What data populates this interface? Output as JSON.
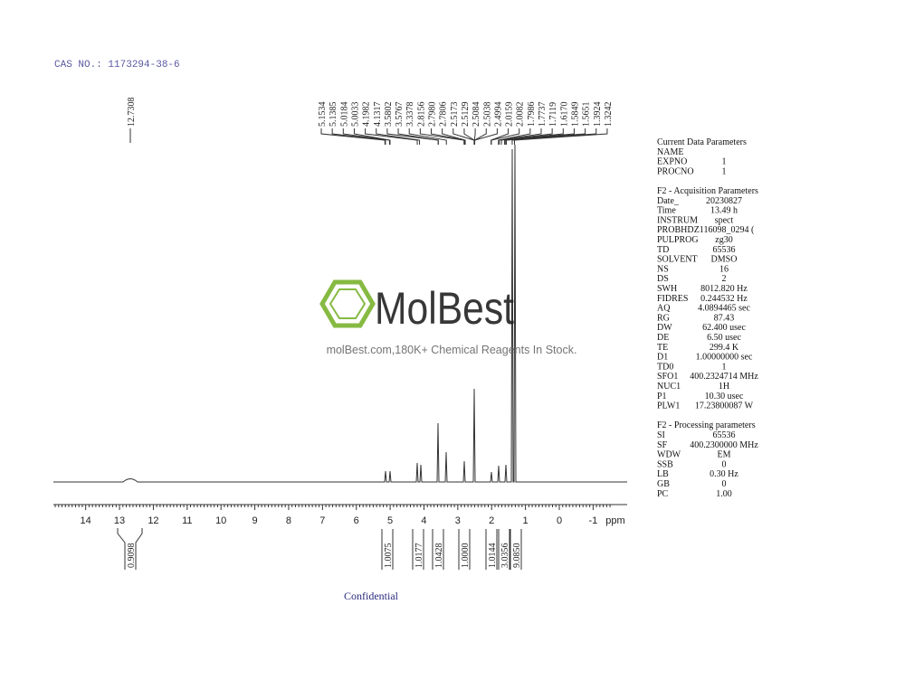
{
  "header": {
    "cas": "CAS NO.: 1173294-38-6"
  },
  "peaks": {
    "single": "12.7308",
    "labels": [
      "5.1534",
      "5.1385",
      "5.0184",
      "5.0033",
      "4.1982",
      "4.1317",
      "3.5802",
      "3.5767",
      "3.3378",
      "2.8156",
      "2.7980",
      "2.7806",
      "2.5173",
      "2.5129",
      "2.5084",
      "2.5038",
      "2.4994",
      "2.0159",
      "2.0082",
      "1.7986",
      "1.7737",
      "1.7119",
      "1.6170",
      "1.5849",
      "1.5651",
      "1.3924",
      "1.3242"
    ]
  },
  "axis": {
    "ticks": [
      "14",
      "13",
      "12",
      "11",
      "10",
      "9",
      "8",
      "7",
      "6",
      "5",
      "4",
      "3",
      "2",
      "1",
      "0",
      "-1"
    ],
    "unit": "ppm"
  },
  "integrals": [
    "0.9098",
    "1.0075",
    "1.0177",
    "1.0428",
    "1.0000",
    "1.0144",
    "3.0356",
    "9.0850"
  ],
  "watermark": {
    "brand": "MolBest",
    "tagline": "molBest.com,180K+ Chemical Reagents In Stock."
  },
  "footer": "Confidential",
  "parameters": [
    {
      "title": "Current Data Parameters",
      "rows": [
        [
          "NAME",
          ""
        ],
        [
          "EXPNO",
          "1"
        ],
        [
          "PROCNO",
          "1"
        ]
      ]
    },
    {
      "title": "F2 - Acquisition Parameters",
      "rows": [
        [
          "Date_",
          "20230827"
        ],
        [
          "Time",
          "13.49 h"
        ],
        [
          "INSTRUM",
          "spect"
        ],
        [
          "PROBHD",
          "Z116098_0294 ("
        ],
        [
          "PULPROG",
          "zg30"
        ],
        [
          "TD",
          "65536"
        ],
        [
          "SOLVENT",
          "DMSO"
        ],
        [
          "NS",
          "16"
        ],
        [
          "DS",
          "2"
        ],
        [
          "SWH",
          "8012.820 Hz"
        ],
        [
          "FIDRES",
          "0.244532 Hz"
        ],
        [
          "AQ",
          "4.0894465 sec"
        ],
        [
          "RG",
          "87.43"
        ],
        [
          "DW",
          "62.400 usec"
        ],
        [
          "DE",
          "6.50 usec"
        ],
        [
          "TE",
          "299.4 K"
        ],
        [
          "D1",
          "1.00000000 sec"
        ],
        [
          "TD0",
          "1"
        ],
        [
          "SFO1",
          "400.2324714 MHz"
        ],
        [
          "NUC1",
          "1H"
        ],
        [
          "P1",
          "10.30 usec"
        ],
        [
          "PLW1",
          "17.23800087 W"
        ]
      ]
    },
    {
      "title": "F2 - Processing parameters",
      "rows": [
        [
          "SI",
          "65536"
        ],
        [
          "SF",
          "400.2300000 MHz"
        ],
        [
          "WDW",
          "EM"
        ],
        [
          "SSB",
          "0"
        ],
        [
          "LB",
          "0.30 Hz"
        ],
        [
          "GB",
          "0"
        ],
        [
          "PC",
          "1.00"
        ]
      ]
    }
  ]
}
